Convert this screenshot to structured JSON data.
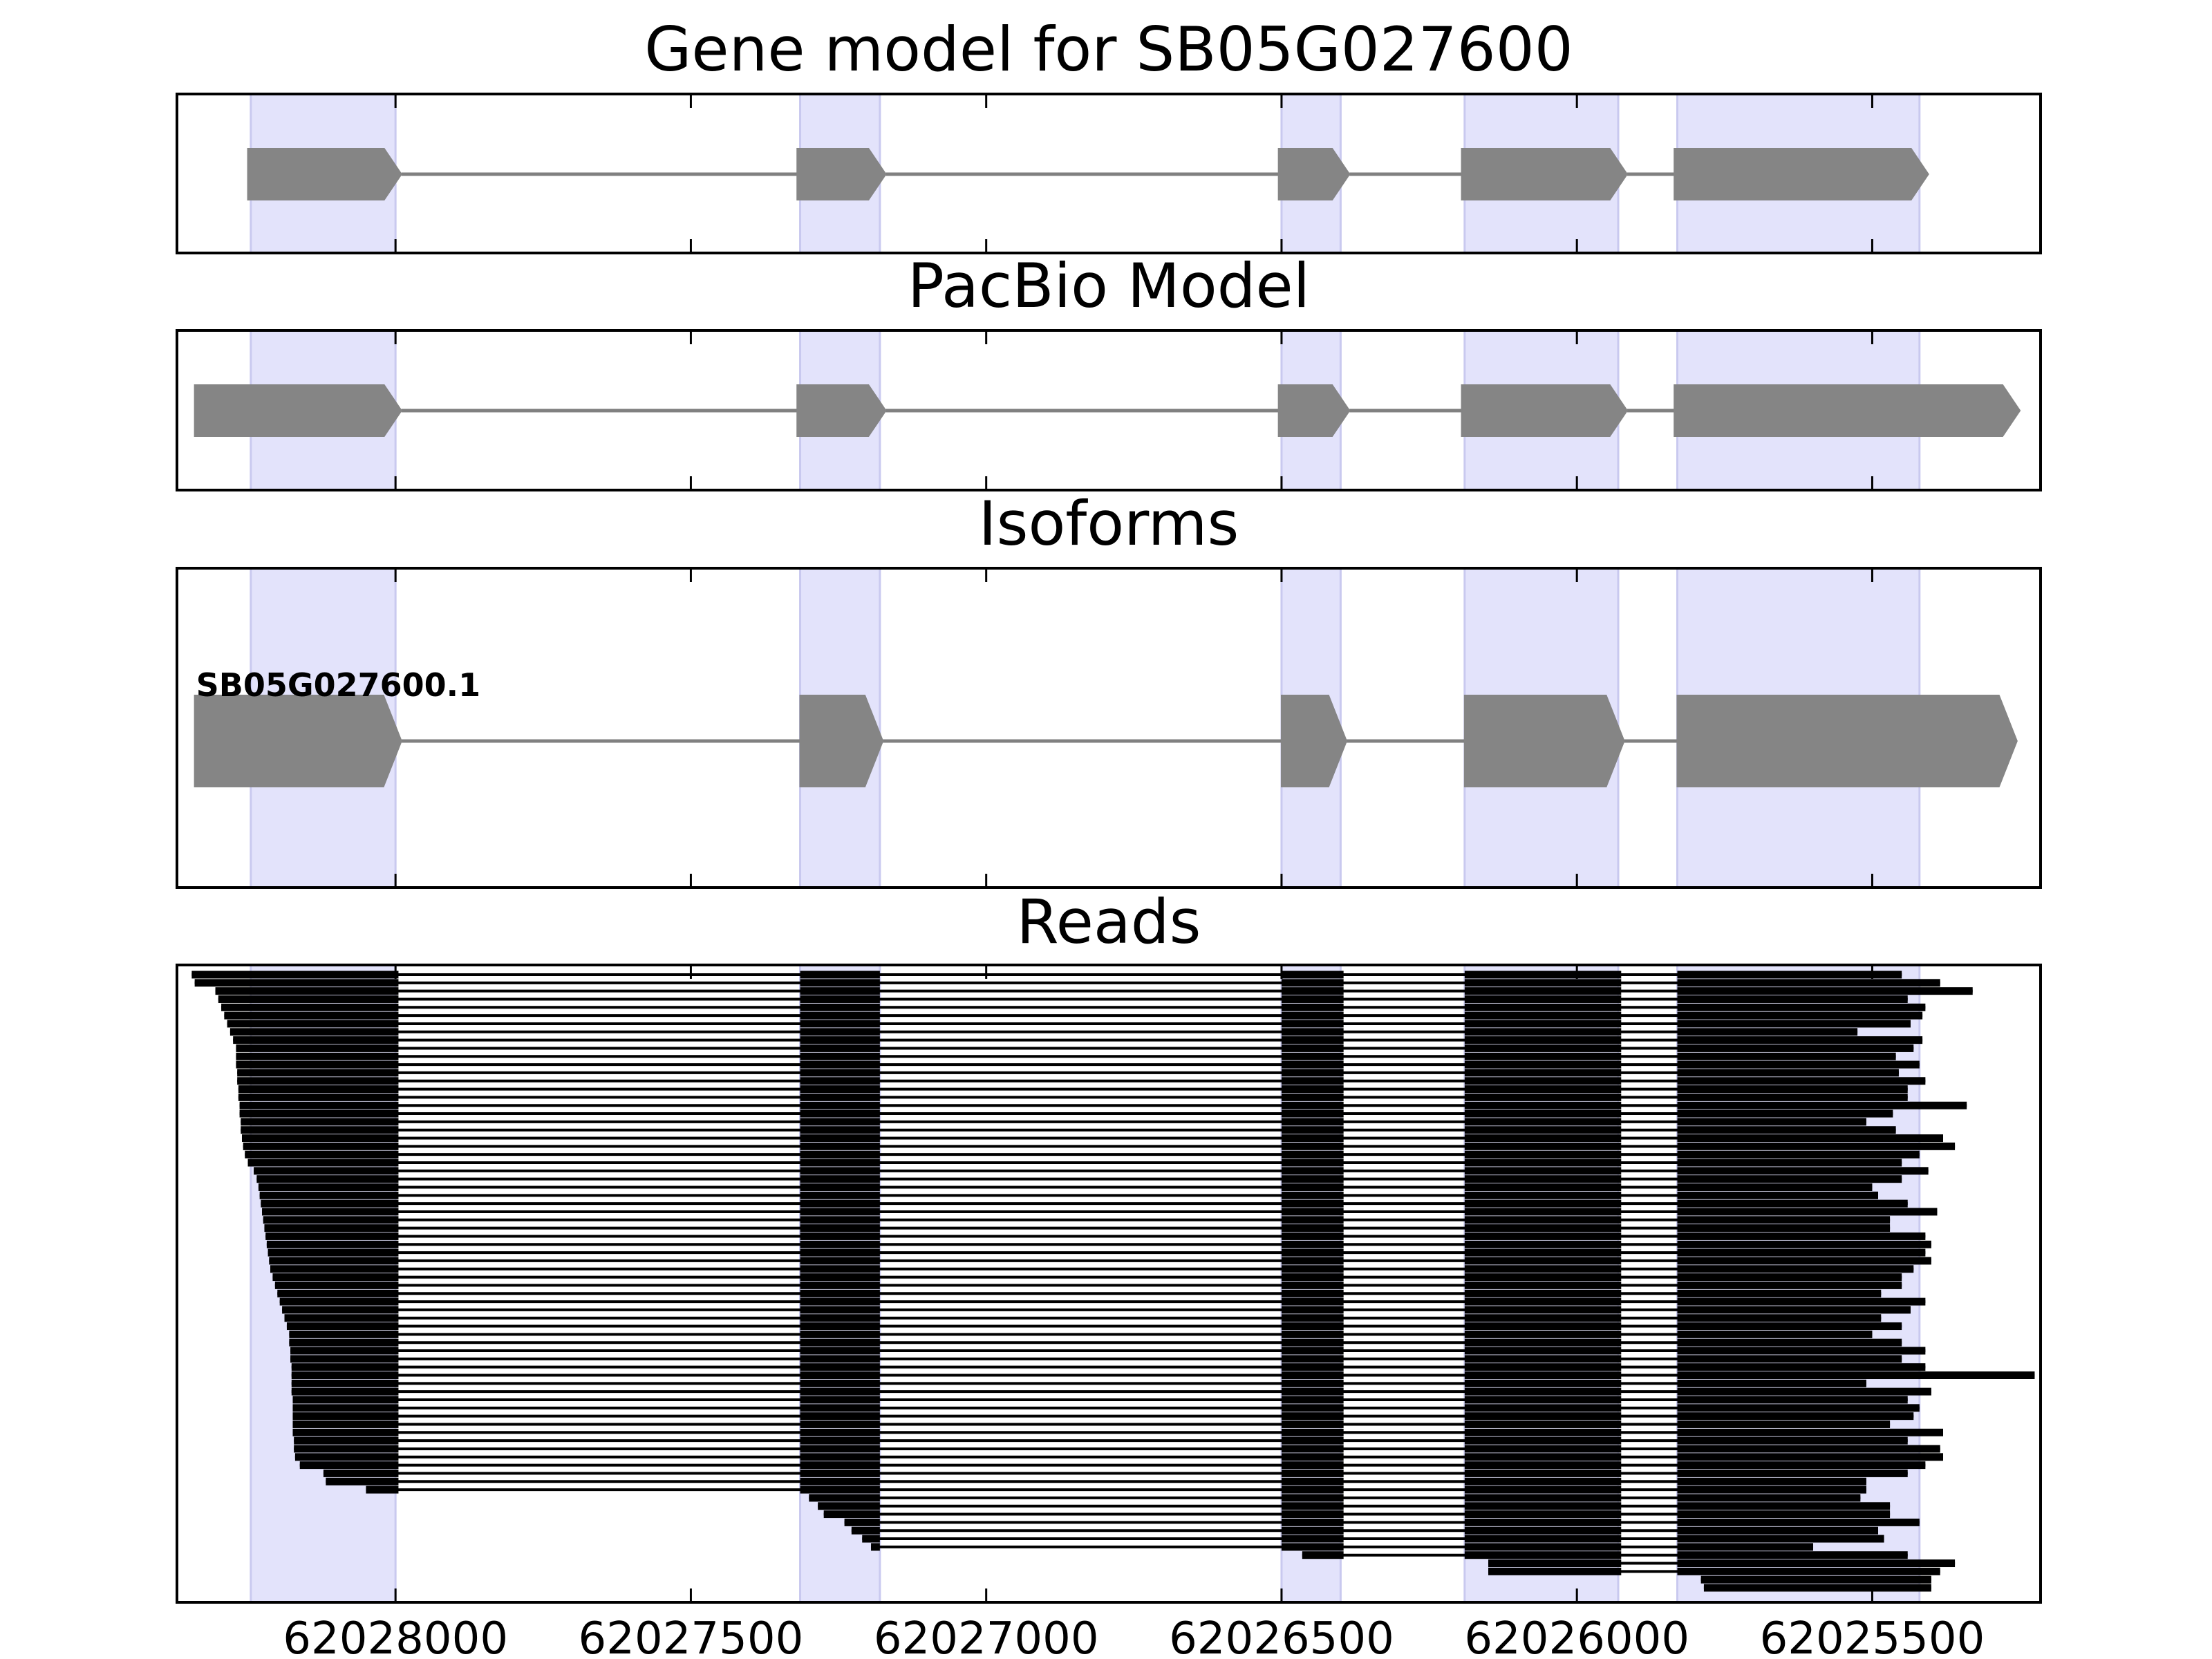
{
  "chart_data": {
    "type": "gene-structure",
    "xaxis": {
      "reversed": true,
      "xlim": [
        62028370,
        62025215
      ],
      "ticks": [
        62028000,
        62027500,
        62027000,
        62026500,
        62026000,
        62025500
      ],
      "tick_labels": [
        "62028000",
        "62027500",
        "62027000",
        "62026500",
        "62026000",
        "62025500"
      ]
    },
    "highlight_exons": [
      [
        62028245,
        62028000
      ],
      [
        62027315,
        62027180
      ],
      [
        62026500,
        62026400
      ],
      [
        62026190,
        62025930
      ],
      [
        62025830,
        62025420
      ]
    ],
    "panels": [
      {
        "title": "Gene model for SB05G027600",
        "strand": "-",
        "exons": [
          [
            62028250,
            62027990
          ],
          [
            62027320,
            62027170
          ],
          [
            62026505,
            62026385
          ],
          [
            62026195,
            62025915
          ],
          [
            62025835,
            62025405
          ]
        ]
      },
      {
        "title": "PacBio Model",
        "strand": "-",
        "exons": [
          [
            62028340,
            62027990
          ],
          [
            62027320,
            62027170
          ],
          [
            62026505,
            62026385
          ],
          [
            62026195,
            62025915
          ],
          [
            62025835,
            62025250
          ]
        ]
      },
      {
        "title": "Isoforms",
        "strand": "-",
        "isoform_label": "SB05G027600.1",
        "exons": [
          [
            62028340,
            62027990
          ],
          [
            62027315,
            62027175
          ],
          [
            62026500,
            62026390
          ],
          [
            62026190,
            62025920
          ],
          [
            62025830,
            62025255
          ]
        ]
      }
    ],
    "reads": {
      "title": "Reads",
      "intron_blocks": [
        [
          62027995,
          62027315
        ],
        [
          62027180,
          62026500
        ],
        [
          62026395,
          62026190
        ],
        [
          62025925,
          62025830
        ]
      ],
      "read_starts": [
        62028345,
        62028340,
        62028305,
        62028300,
        62028295,
        62028290,
        62028285,
        62028280,
        62028275,
        62028270,
        62028270,
        62028270,
        62028268,
        62028268,
        62028266,
        62028266,
        62028264,
        62028264,
        62028262,
        62028262,
        62028260,
        62028258,
        62028255,
        62028250,
        62028240,
        62028235,
        62028232,
        62028230,
        62028228,
        62028226,
        62028224,
        62028222,
        62028220,
        62028218,
        62028216,
        62028214,
        62028212,
        62028208,
        62028204,
        62028200,
        62028196,
        62028192,
        62028188,
        62028184,
        62028180,
        62028180,
        62028178,
        62028178,
        62028176,
        62028176,
        62028176,
        62028176,
        62028174,
        62028174,
        62028174,
        62028174,
        62028174,
        62028172,
        62028172,
        62028170,
        62028162,
        62028122,
        62028118,
        62028050
      ],
      "read_ends": [
        62025450,
        62025385,
        62025330,
        62025440,
        62025410,
        62025415,
        62025435,
        62025525,
        62025415,
        62025430,
        62025460,
        62025420,
        62025455,
        62025410,
        62025440,
        62025440,
        62025340,
        62025465,
        62025510,
        62025460,
        62025380,
        62025360,
        62025420,
        62025450,
        62025405,
        62025450,
        62025500,
        62025490,
        62025440,
        62025390,
        62025470,
        62025470,
        62025410,
        62025400,
        62025410,
        62025400,
        62025430,
        62025450,
        62025450,
        62025485,
        62025410,
        62025435,
        62025485,
        62025450,
        62025500,
        62025450,
        62025410,
        62025450,
        62025410,
        62025225,
        62025510,
        62025400,
        62025440,
        62025420,
        62025430,
        62025470,
        62025380,
        62025440,
        62025385,
        62025380,
        62025410,
        62025440,
        62025510,
        62025510
      ],
      "late_reads": [
        {
          "start": 62027300,
          "end": 62025520
        },
        {
          "start": 62027285,
          "end": 62025470
        },
        {
          "start": 62027275,
          "end": 62025470
        },
        {
          "start": 62027240,
          "end": 62025420
        },
        {
          "start": 62027228,
          "end": 62025490
        },
        {
          "start": 62027210,
          "end": 62025480
        },
        {
          "start": 62027195,
          "end": 62025600
        },
        {
          "start": 62026465,
          "end": 62025440
        },
        {
          "start": 62026150,
          "end": 62025360
        },
        {
          "start": 62026150,
          "end": 62025385
        },
        {
          "start": 62025790,
          "end": 62025400
        },
        {
          "start": 62025785,
          "end": 62025400
        }
      ]
    },
    "colors": {
      "exon": "#858585",
      "intron": "#808080",
      "highlight": "#e3e3fb",
      "highlight_edge": "#c9c9ef",
      "read": "#000000",
      "frame": "#000000"
    }
  }
}
